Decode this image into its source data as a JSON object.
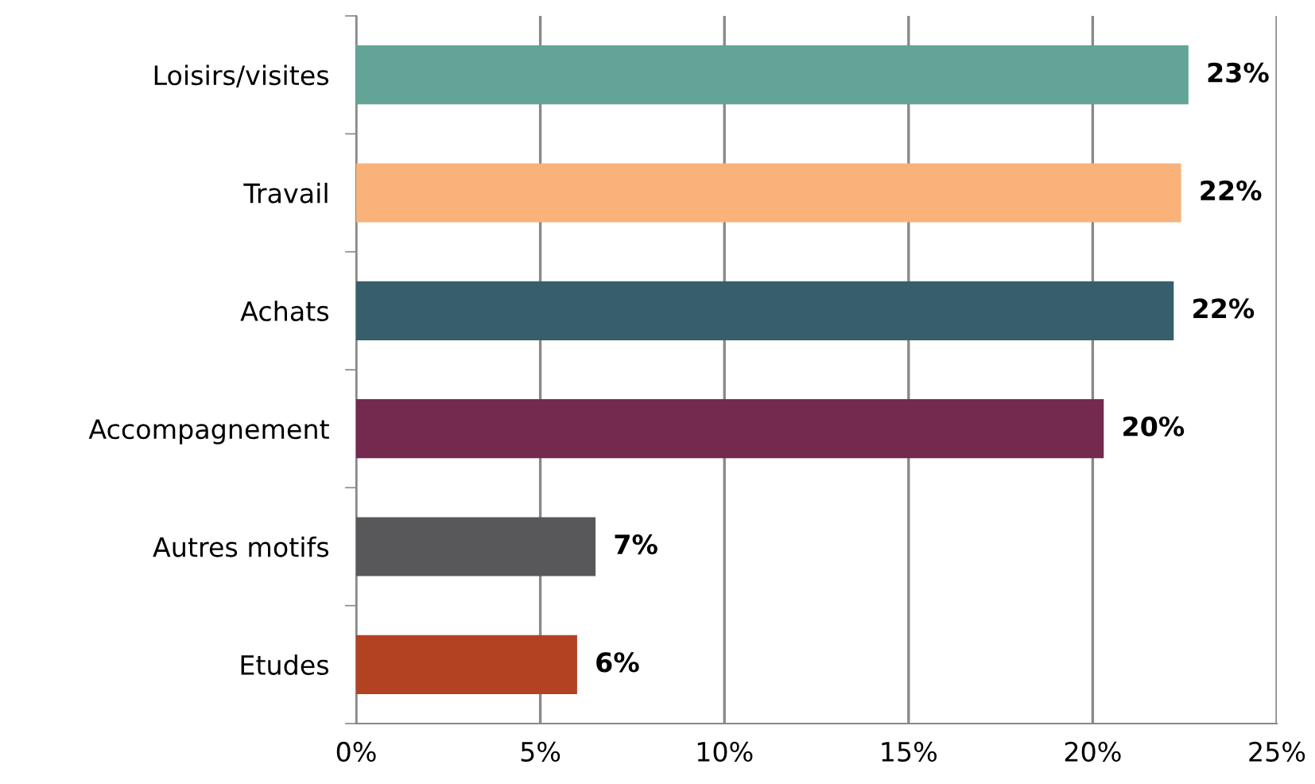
{
  "chart_data": {
    "type": "bar",
    "orientation": "horizontal",
    "categories": [
      "Loisirs/visites",
      "Travail",
      "Achats",
      "Accompagnement",
      "Autres motifs",
      "Etudes"
    ],
    "values": [
      22.6,
      22.4,
      22.2,
      20.3,
      6.5,
      6.0
    ],
    "colors": [
      "#62a596",
      "#f9b27a",
      "#365f6b",
      "#74294e",
      "#58585a",
      "#b34223"
    ],
    "value_labels": [
      "23%",
      "22%",
      "22%",
      "20%",
      "7%",
      "6%"
    ],
    "xlim": [
      0,
      25
    ],
    "xticks": [
      {
        "value": 0,
        "label": "0%"
      },
      {
        "value": 5,
        "label": "5%"
      },
      {
        "value": 10,
        "label": "10%"
      },
      {
        "value": 15,
        "label": "15%"
      },
      {
        "value": 20,
        "label": "20%"
      },
      {
        "value": 25,
        "label": "25%"
      }
    ],
    "grid": "x"
  }
}
